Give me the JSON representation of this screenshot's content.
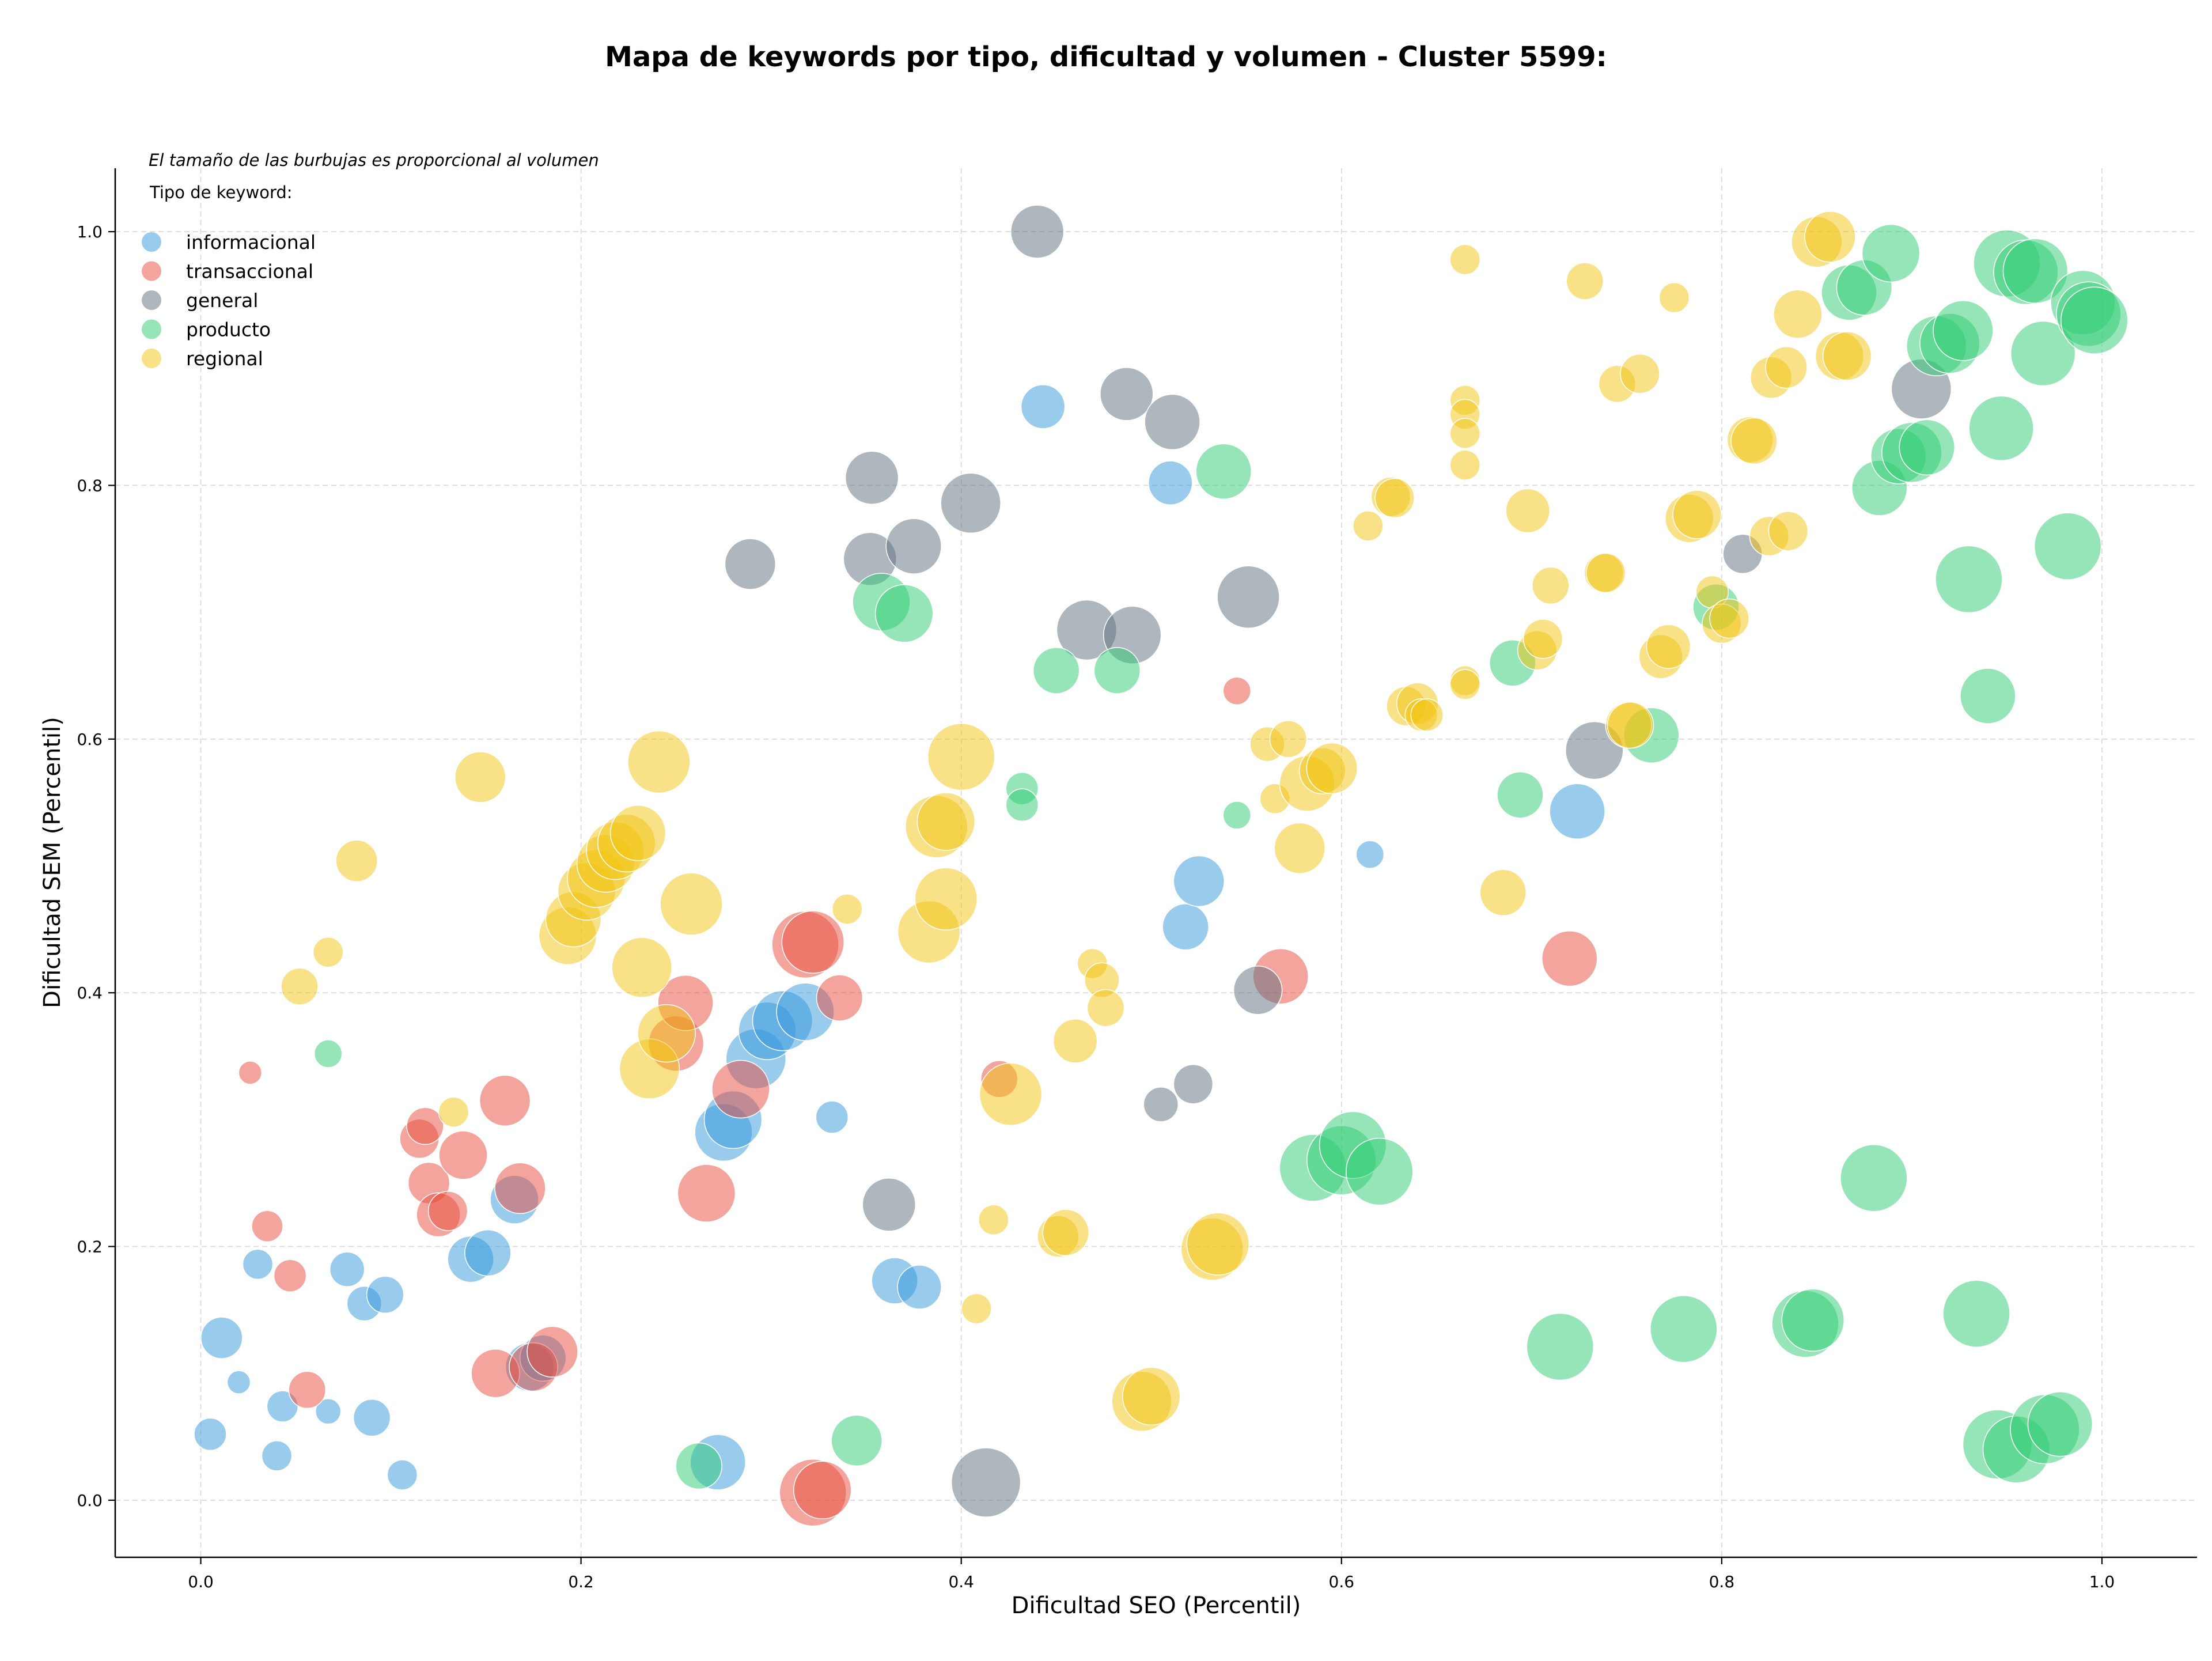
{
  "chart_data": {
    "type": "scatter",
    "title": "Mapa de keywords por tipo, dificultad y volumen - Cluster 5599:",
    "xlabel": "Dificultad SEO (Percentil)",
    "ylabel": "Dificultad SEM (Percentil)",
    "xlim": [
      -0.045,
      1.05
    ],
    "ylim": [
      -0.045,
      1.05
    ],
    "xticks": [
      "0.0",
      "0.2",
      "0.4",
      "0.6",
      "0.8",
      "1.0"
    ],
    "yticks": [
      "0.0",
      "0.2",
      "0.4",
      "0.6",
      "0.8",
      "1.0"
    ],
    "grid": true,
    "legend_position": "top-left",
    "size_note": "El tamaño de las burbujas es proporcional al volumen",
    "legend_title": "Tipo de keyword:",
    "series": [
      {
        "name": "informacional",
        "color": "#3498db",
        "points": [
          [
            0.005,
            0.052,
            28
          ],
          [
            0.011,
            0.128,
            36
          ],
          [
            0.02,
            0.093,
            20
          ],
          [
            0.03,
            0.186,
            26
          ],
          [
            0.04,
            0.035,
            26
          ],
          [
            0.043,
            0.074,
            27
          ],
          [
            0.067,
            0.07,
            22
          ],
          [
            0.077,
            0.182,
            30
          ],
          [
            0.086,
            0.155,
            30
          ],
          [
            0.09,
            0.065,
            32
          ],
          [
            0.097,
            0.162,
            32
          ],
          [
            0.106,
            0.02,
            26
          ],
          [
            0.142,
            0.19,
            40
          ],
          [
            0.151,
            0.195,
            40
          ],
          [
            0.165,
            0.237,
            42
          ],
          [
            0.173,
            0.105,
            42
          ],
          [
            0.18,
            0.112,
            40
          ],
          [
            0.275,
            0.29,
            50
          ],
          [
            0.28,
            0.3,
            50
          ],
          [
            0.292,
            0.348,
            52
          ],
          [
            0.298,
            0.37,
            50
          ],
          [
            0.306,
            0.378,
            52
          ],
          [
            0.318,
            0.385,
            50
          ],
          [
            0.332,
            0.302,
            28
          ],
          [
            0.365,
            0.173,
            40
          ],
          [
            0.378,
            0.168,
            38
          ],
          [
            0.272,
            0.03,
            48
          ],
          [
            0.443,
            0.862,
            38
          ],
          [
            0.51,
            0.802,
            38
          ],
          [
            0.518,
            0.452,
            40
          ],
          [
            0.525,
            0.488,
            44
          ],
          [
            0.615,
            0.509,
            24
          ],
          [
            0.724,
            0.543,
            48
          ]
        ]
      },
      {
        "name": "transaccional",
        "color": "#e74c3c",
        "points": [
          [
            0.026,
            0.337,
            20
          ],
          [
            0.035,
            0.216,
            27
          ],
          [
            0.047,
            0.177,
            28
          ],
          [
            0.056,
            0.087,
            32
          ],
          [
            0.115,
            0.285,
            34
          ],
          [
            0.118,
            0.295,
            32
          ],
          [
            0.12,
            0.25,
            36
          ],
          [
            0.125,
            0.225,
            38
          ],
          [
            0.13,
            0.228,
            34
          ],
          [
            0.138,
            0.272,
            42
          ],
          [
            0.16,
            0.315,
            44
          ],
          [
            0.168,
            0.246,
            44
          ],
          [
            0.155,
            0.1,
            42
          ],
          [
            0.175,
            0.105,
            42
          ],
          [
            0.185,
            0.117,
            44
          ],
          [
            0.25,
            0.36,
            48
          ],
          [
            0.255,
            0.392,
            48
          ],
          [
            0.266,
            0.242,
            50
          ],
          [
            0.284,
            0.324,
            50
          ],
          [
            0.318,
            0.438,
            58
          ],
          [
            0.322,
            0.44,
            54
          ],
          [
            0.336,
            0.396,
            40
          ],
          [
            0.322,
            0.006,
            58
          ],
          [
            0.327,
            0.008,
            50
          ],
          [
            0.42,
            0.332,
            32
          ],
          [
            0.545,
            0.638,
            24
          ],
          [
            0.568,
            0.413,
            48
          ],
          [
            0.72,
            0.427,
            48
          ]
        ]
      },
      {
        "name": "general",
        "color": "#5d6d7e",
        "points": [
          [
            0.289,
            0.738,
            44
          ],
          [
            0.353,
            0.806,
            46
          ],
          [
            0.352,
            0.742,
            46
          ],
          [
            0.375,
            0.752,
            48
          ],
          [
            0.405,
            0.786,
            52
          ],
          [
            0.44,
            1.0,
            46
          ],
          [
            0.466,
            0.686,
            52
          ],
          [
            0.49,
            0.682,
            50
          ],
          [
            0.487,
            0.872,
            46
          ],
          [
            0.511,
            0.85,
            48
          ],
          [
            0.551,
            0.712,
            54
          ],
          [
            0.362,
            0.233,
            46
          ],
          [
            0.413,
            0.014,
            60
          ],
          [
            0.505,
            0.312,
            30
          ],
          [
            0.522,
            0.328,
            34
          ],
          [
            0.556,
            0.402,
            42
          ],
          [
            0.733,
            0.591,
            50
          ],
          [
            0.811,
            0.746,
            34
          ],
          [
            0.905,
            0.876,
            52
          ]
        ]
      },
      {
        "name": "producto",
        "color": "#2ecc71",
        "points": [
          [
            0.067,
            0.352,
            24
          ],
          [
            0.262,
            0.027,
            40
          ],
          [
            0.345,
            0.047,
            44
          ],
          [
            0.358,
            0.708,
            50
          ],
          [
            0.37,
            0.699,
            50
          ],
          [
            0.432,
            0.561,
            28
          ],
          [
            0.432,
            0.548,
            28
          ],
          [
            0.45,
            0.654,
            40
          ],
          [
            0.482,
            0.654,
            40
          ],
          [
            0.538,
            0.811,
            48
          ],
          [
            0.545,
            0.54,
            24
          ],
          [
            0.585,
            0.262,
            58
          ],
          [
            0.6,
            0.268,
            60
          ],
          [
            0.606,
            0.28,
            58
          ],
          [
            0.62,
            0.259,
            58
          ],
          [
            0.69,
            0.66,
            40
          ],
          [
            0.694,
            0.556,
            40
          ],
          [
            0.715,
            0.121,
            58
          ],
          [
            0.763,
            0.603,
            48
          ],
          [
            0.78,
            0.135,
            58
          ],
          [
            0.797,
            0.704,
            40
          ],
          [
            0.844,
            0.139,
            58
          ],
          [
            0.848,
            0.142,
            54
          ],
          [
            0.867,
            0.952,
            48
          ],
          [
            0.875,
            0.956,
            48
          ],
          [
            0.883,
            0.798,
            48
          ],
          [
            0.889,
            0.983,
            50
          ],
          [
            0.893,
            0.823,
            48
          ],
          [
            0.9,
            0.826,
            52
          ],
          [
            0.908,
            0.83,
            48
          ],
          [
            0.913,
            0.91,
            52
          ],
          [
            0.92,
            0.912,
            52
          ],
          [
            0.927,
            0.922,
            52
          ],
          [
            0.88,
            0.254,
            58
          ],
          [
            0.934,
            0.147,
            58
          ],
          [
            0.93,
            0.726,
            58
          ],
          [
            0.94,
            0.634,
            48
          ],
          [
            0.947,
            0.845,
            56
          ],
          [
            0.95,
            0.975,
            58
          ],
          [
            0.96,
            0.968,
            56
          ],
          [
            0.965,
            0.969,
            56
          ],
          [
            0.969,
            0.904,
            56
          ],
          [
            0.982,
            0.752,
            58
          ],
          [
            0.99,
            0.944,
            56
          ],
          [
            0.993,
            0.935,
            56
          ],
          [
            0.996,
            0.93,
            58
          ],
          [
            0.945,
            0.044,
            60
          ],
          [
            0.955,
            0.04,
            58
          ],
          [
            0.97,
            0.056,
            60
          ],
          [
            0.978,
            0.06,
            56
          ]
        ]
      },
      {
        "name": "regional",
        "color": "#f1c40f",
        "points": [
          [
            0.052,
            0.405,
            32
          ],
          [
            0.067,
            0.432,
            26
          ],
          [
            0.082,
            0.504,
            36
          ],
          [
            0.133,
            0.306,
            26
          ],
          [
            0.147,
            0.57,
            44
          ],
          [
            0.193,
            0.445,
            50
          ],
          [
            0.196,
            0.458,
            48
          ],
          [
            0.203,
            0.48,
            50
          ],
          [
            0.208,
            0.49,
            50
          ],
          [
            0.213,
            0.502,
            50
          ],
          [
            0.218,
            0.512,
            50
          ],
          [
            0.224,
            0.518,
            50
          ],
          [
            0.23,
            0.526,
            48
          ],
          [
            0.232,
            0.42,
            52
          ],
          [
            0.236,
            0.34,
            52
          ],
          [
            0.241,
            0.582,
            54
          ],
          [
            0.245,
            0.368,
            50
          ],
          [
            0.258,
            0.47,
            54
          ],
          [
            0.34,
            0.466,
            26
          ],
          [
            0.383,
            0.448,
            54
          ],
          [
            0.387,
            0.531,
            54
          ],
          [
            0.392,
            0.535,
            50
          ],
          [
            0.392,
            0.474,
            54
          ],
          [
            0.4,
            0.586,
            58
          ],
          [
            0.417,
            0.221,
            26
          ],
          [
            0.426,
            0.32,
            54
          ],
          [
            0.408,
            0.151,
            26
          ],
          [
            0.451,
            0.208,
            36
          ],
          [
            0.455,
            0.211,
            40
          ],
          [
            0.46,
            0.362,
            38
          ],
          [
            0.469,
            0.423,
            26
          ],
          [
            0.474,
            0.41,
            30
          ],
          [
            0.476,
            0.388,
            32
          ],
          [
            0.495,
            0.078,
            52
          ],
          [
            0.5,
            0.082,
            50
          ],
          [
            0.532,
            0.198,
            54
          ],
          [
            0.535,
            0.202,
            54
          ],
          [
            0.561,
            0.596,
            30
          ],
          [
            0.565,
            0.553,
            26
          ],
          [
            0.572,
            0.6,
            32
          ],
          [
            0.578,
            0.514,
            44
          ],
          [
            0.582,
            0.565,
            48
          ],
          [
            0.59,
            0.575,
            40
          ],
          [
            0.595,
            0.577,
            44
          ],
          [
            0.614,
            0.768,
            26
          ],
          [
            0.626,
            0.791,
            34
          ],
          [
            0.628,
            0.79,
            34
          ],
          [
            0.634,
            0.626,
            34
          ],
          [
            0.64,
            0.628,
            36
          ],
          [
            0.642,
            0.619,
            28
          ],
          [
            0.645,
            0.619,
            28
          ],
          [
            0.665,
            0.978,
            26
          ],
          [
            0.665,
            0.867,
            26
          ],
          [
            0.665,
            0.856,
            26
          ],
          [
            0.665,
            0.841,
            26
          ],
          [
            0.665,
            0.816,
            26
          ],
          [
            0.665,
            0.646,
            26
          ],
          [
            0.665,
            0.643,
            26
          ],
          [
            0.685,
            0.479,
            40
          ],
          [
            0.698,
            0.78,
            38
          ],
          [
            0.703,
            0.67,
            34
          ],
          [
            0.706,
            0.679,
            34
          ],
          [
            0.71,
            0.721,
            32
          ],
          [
            0.728,
            0.961,
            32
          ],
          [
            0.738,
            0.731,
            34
          ],
          [
            0.739,
            0.731,
            34
          ],
          [
            0.745,
            0.88,
            32
          ],
          [
            0.751,
            0.611,
            40
          ],
          [
            0.752,
            0.611,
            40
          ],
          [
            0.757,
            0.888,
            34
          ],
          [
            0.768,
            0.665,
            38
          ],
          [
            0.772,
            0.673,
            38
          ],
          [
            0.775,
            0.948,
            26
          ],
          [
            0.783,
            0.774,
            42
          ],
          [
            0.787,
            0.777,
            42
          ],
          [
            0.795,
            0.716,
            28
          ],
          [
            0.8,
            0.691,
            34
          ],
          [
            0.804,
            0.695,
            34
          ],
          [
            0.815,
            0.836,
            40
          ],
          [
            0.817,
            0.835,
            40
          ],
          [
            0.825,
            0.76,
            34
          ],
          [
            0.826,
            0.885,
            36
          ],
          [
            0.834,
            0.893,
            36
          ],
          [
            0.835,
            0.764,
            34
          ],
          [
            0.84,
            0.935,
            42
          ],
          [
            0.85,
            0.992,
            44
          ],
          [
            0.857,
            0.996,
            44
          ],
          [
            0.862,
            0.902,
            42
          ],
          [
            0.866,
            0.902,
            42
          ]
        ]
      }
    ]
  }
}
